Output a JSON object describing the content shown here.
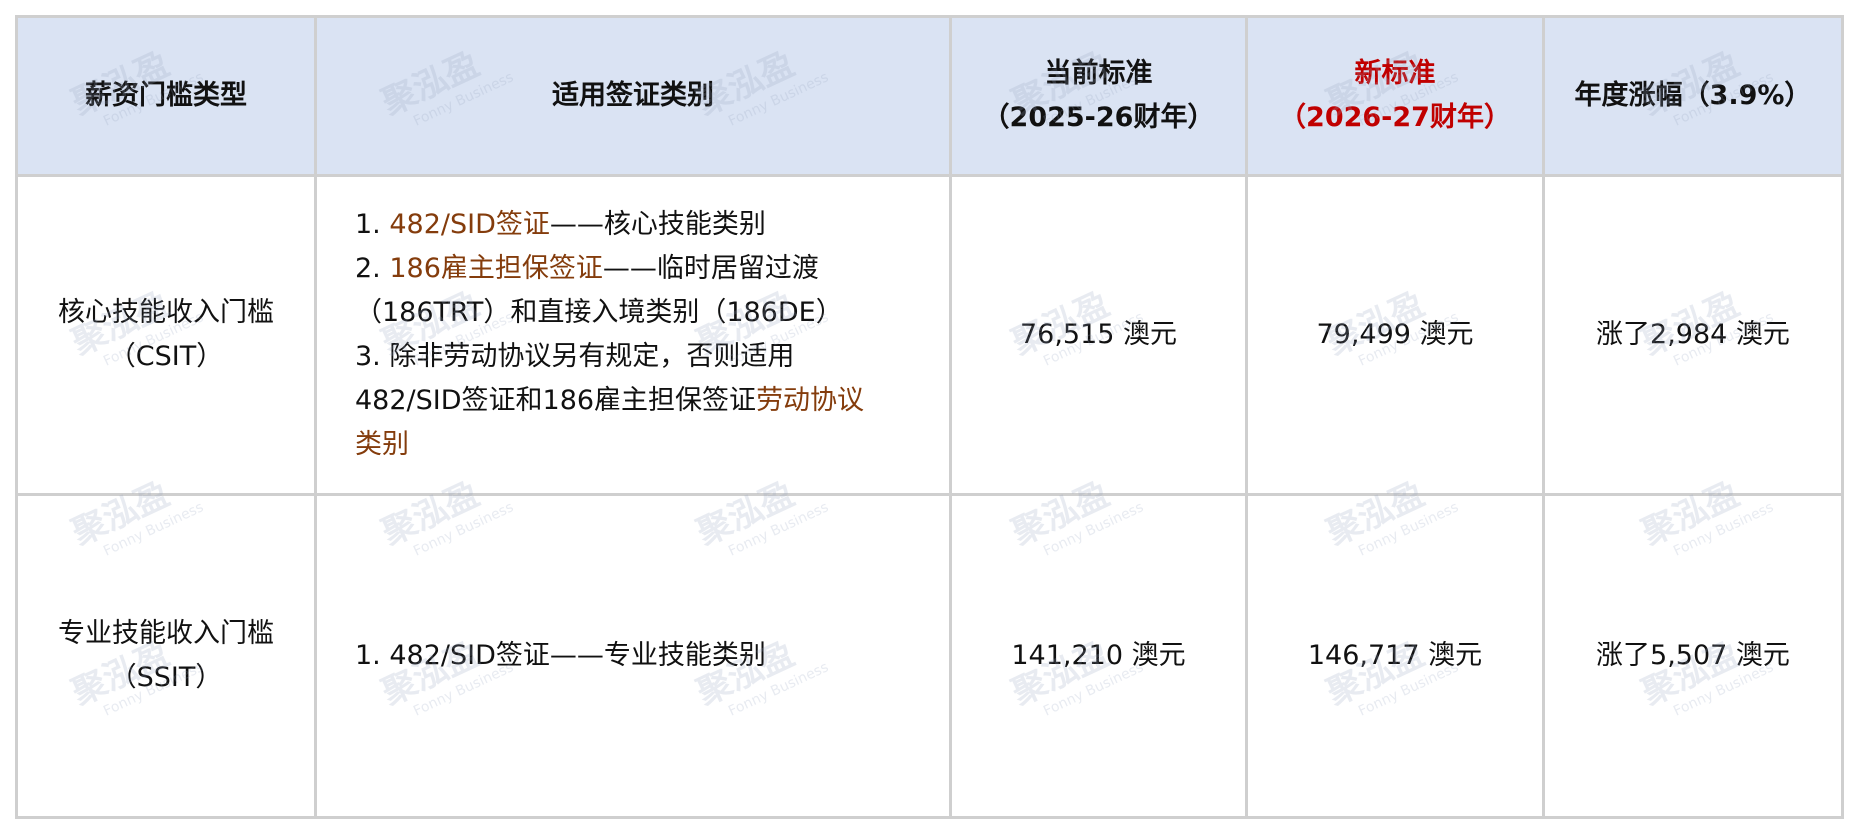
{
  "watermark": {
    "text": "聚泓盈",
    "sub": "Fonny Business"
  },
  "colors": {
    "header_bg": "#dae3f3",
    "highlight": "#843c0c",
    "new_standard": "#c00000",
    "border": "#cfcfcf"
  },
  "table": {
    "headers": [
      "薪资门槛类型",
      "适用签证类别",
      "当前标准",
      "（2025-26财年）",
      "新标准",
      "（2026-27财年）",
      "年度涨幅（3.9%）"
    ],
    "rows": [
      {
        "type": [
          "核心技能收入门槛",
          "（CSIT）"
        ],
        "visa": {
          "l1_num": "1. ",
          "l1_hl": "482/SID签证",
          "l1_rest": "——核心技能类别",
          "l2_num": "2. ",
          "l2_hl": "186雇主担保签证",
          "l2_rest": "——临时居留过渡",
          "l3": "（186TRT）和直接入境类别（186DE）",
          "l4": "3. 除非劳动协议另有规定，否则适用",
          "l5_a": "482/SID签证和186雇主担保签证",
          "l5_hl": "劳动协议",
          "l6_hl": "类别"
        },
        "current": "76,515 澳元",
        "new": "79,499 澳元",
        "increase": "涨了2,984 澳元"
      },
      {
        "type": [
          "专业技能收入门槛",
          "（SSIT）"
        ],
        "visa": {
          "l1": "1. 482/SID签证——专业技能类别"
        },
        "current": "141,210 澳元",
        "new": "146,717 澳元",
        "increase": "涨了5,507 澳元"
      }
    ]
  }
}
